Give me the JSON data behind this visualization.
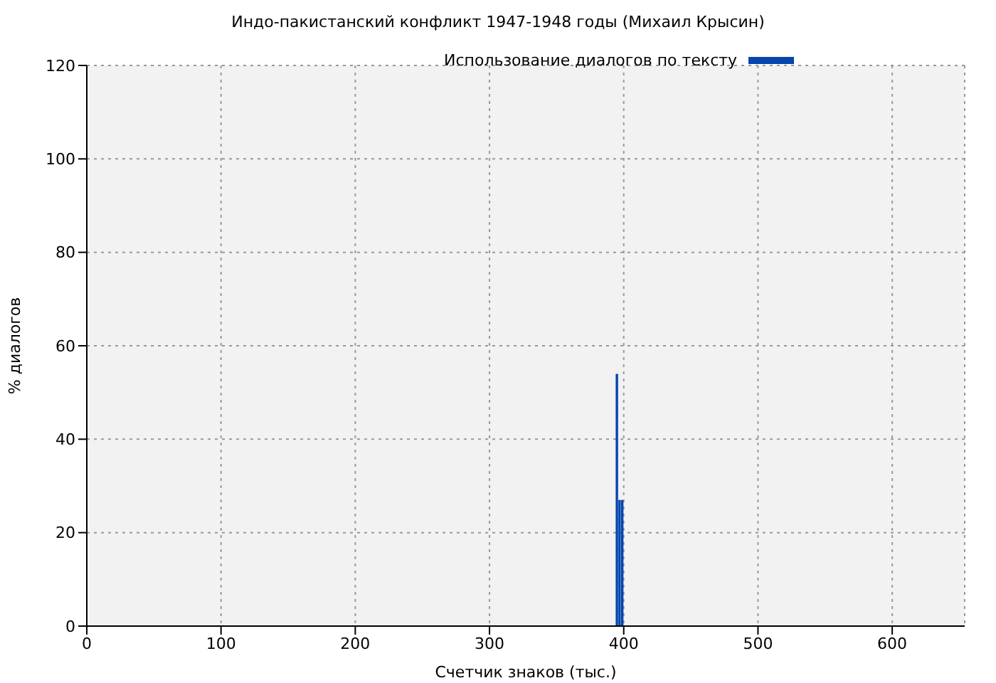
{
  "chart_data": {
    "type": "bar",
    "title": "Индо-пакистанский конфликт 1947-1948 годы (Михаил Крысин)",
    "xlabel": "Счетчик знаков (тыс.)",
    "ylabel": "% диалогов",
    "x": [
      395,
      397,
      399
    ],
    "series": [
      {
        "name": "Использование диалогов по тексту",
        "color": "#0645ad",
        "values": [
          54,
          27,
          27
        ]
      }
    ],
    "xlim": [
      0,
      654
    ],
    "xticks": [
      0,
      100,
      200,
      300,
      400,
      500,
      600
    ],
    "ylim": [
      0,
      120
    ],
    "yticks": [
      0,
      20,
      40,
      60,
      80,
      100,
      120
    ],
    "grid": true,
    "line_style": "dotted",
    "legend": "top right"
  }
}
